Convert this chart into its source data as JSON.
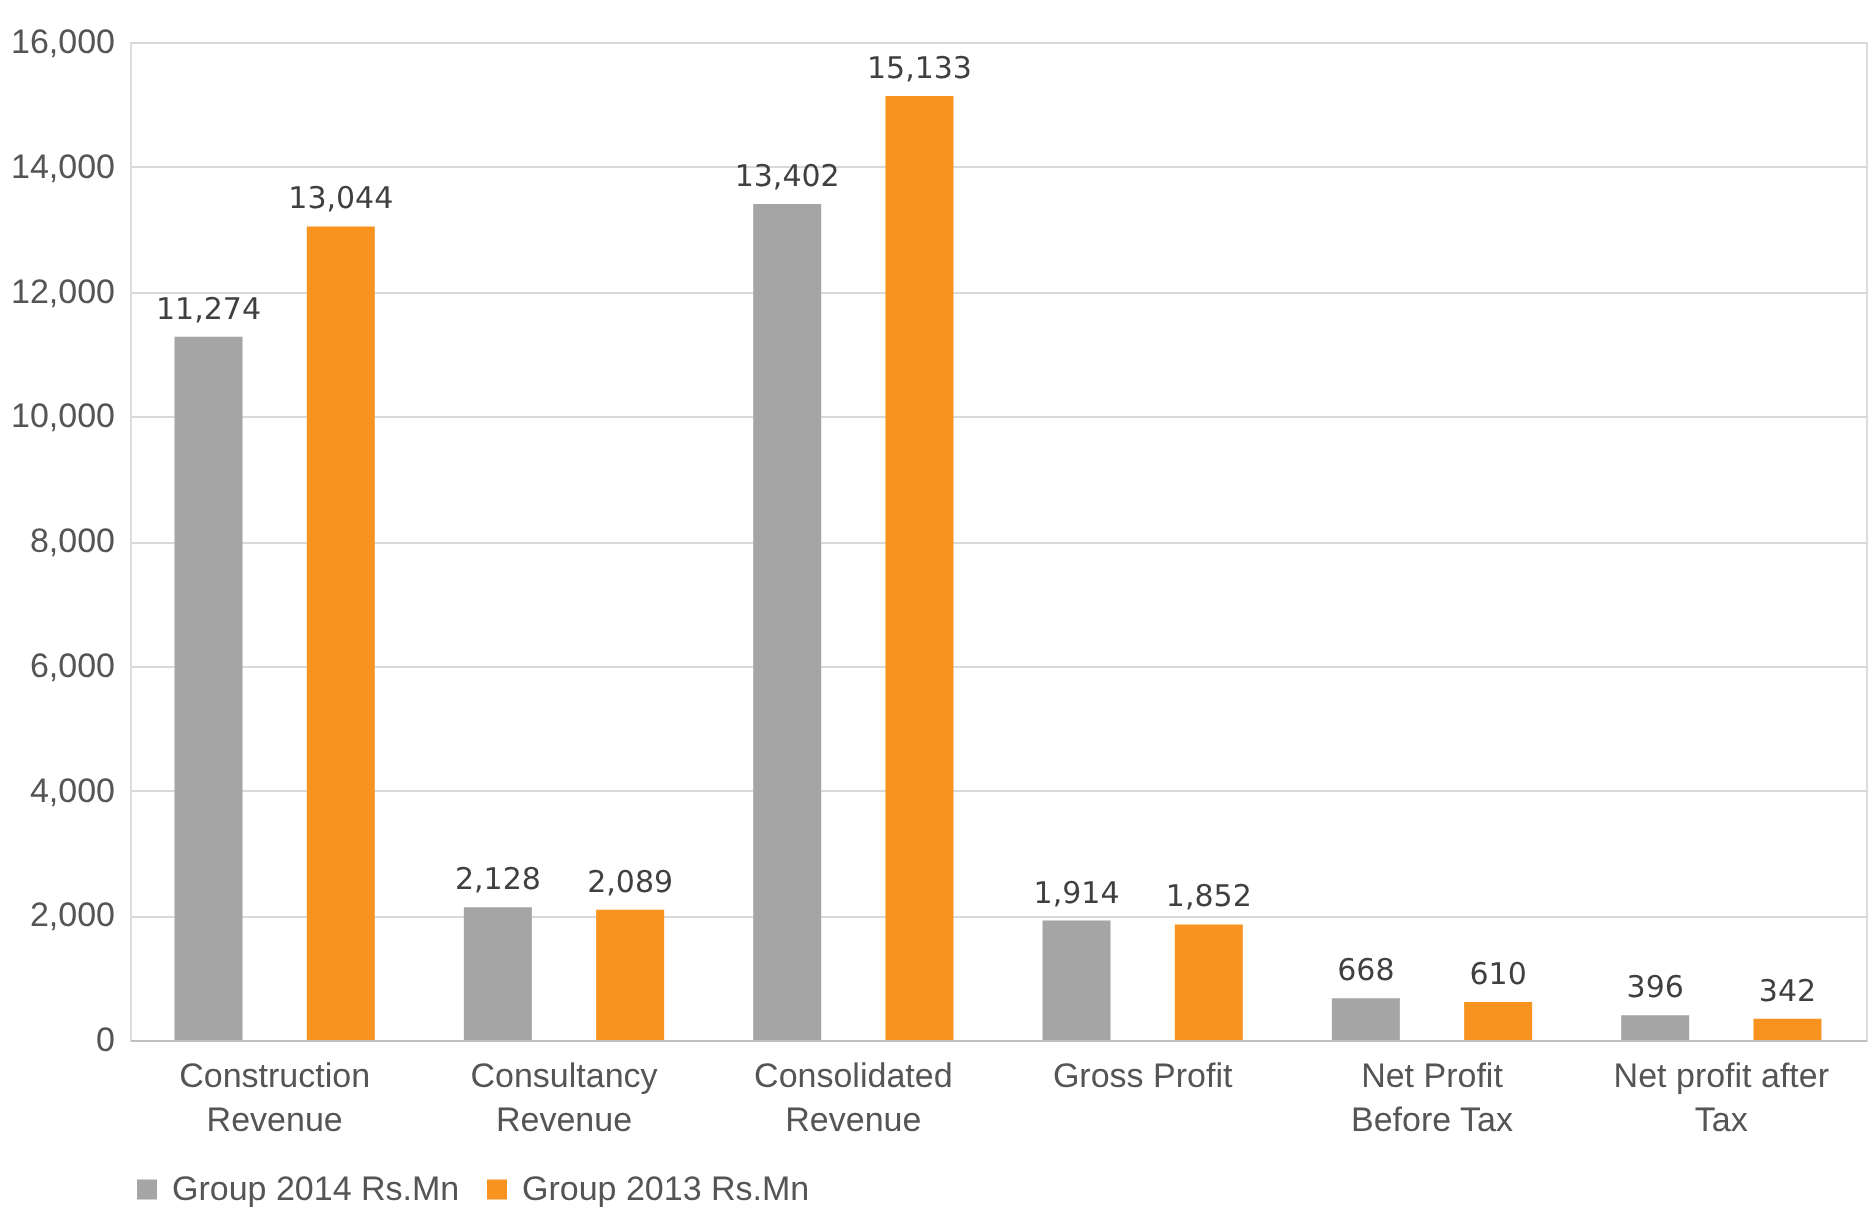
{
  "chart_data": {
    "type": "bar",
    "categories": [
      "Construction Revenue",
      "Consultancy Revenue",
      "Consolidated Revenue",
      "Gross Profit",
      "Net Profit Before Tax",
      "Net profit after Tax"
    ],
    "series": [
      {
        "name": "Group 2014 Rs.Mn",
        "color": "#a5a5a5",
        "values": [
          11274,
          2128,
          13402,
          1914,
          668,
          396
        ],
        "value_labels": [
          "11,274",
          "2,128",
          "13,402",
          "1,914",
          "668",
          "396"
        ]
      },
      {
        "name": "Group 2013 Rs.Mn",
        "color": "#f7931e",
        "values": [
          13044,
          2089,
          15133,
          1852,
          610,
          342
        ],
        "value_labels": [
          "13,044",
          "2,089",
          "15,133",
          "1,852",
          "610",
          "342"
        ]
      }
    ],
    "ylim": [
      0,
      16000
    ],
    "yticks": [
      {
        "value": 0,
        "label": "0"
      },
      {
        "value": 2000,
        "label": "2,000"
      },
      {
        "value": 4000,
        "label": "4,000"
      },
      {
        "value": 6000,
        "label": "6,000"
      },
      {
        "value": 8000,
        "label": "8,000"
      },
      {
        "value": 10000,
        "label": "10,000"
      },
      {
        "value": 12000,
        "label": "12,000"
      },
      {
        "value": 14000,
        "label": "14,000"
      },
      {
        "value": 16000,
        "label": "16,000"
      }
    ],
    "grid": "y",
    "legend": "bottom"
  }
}
